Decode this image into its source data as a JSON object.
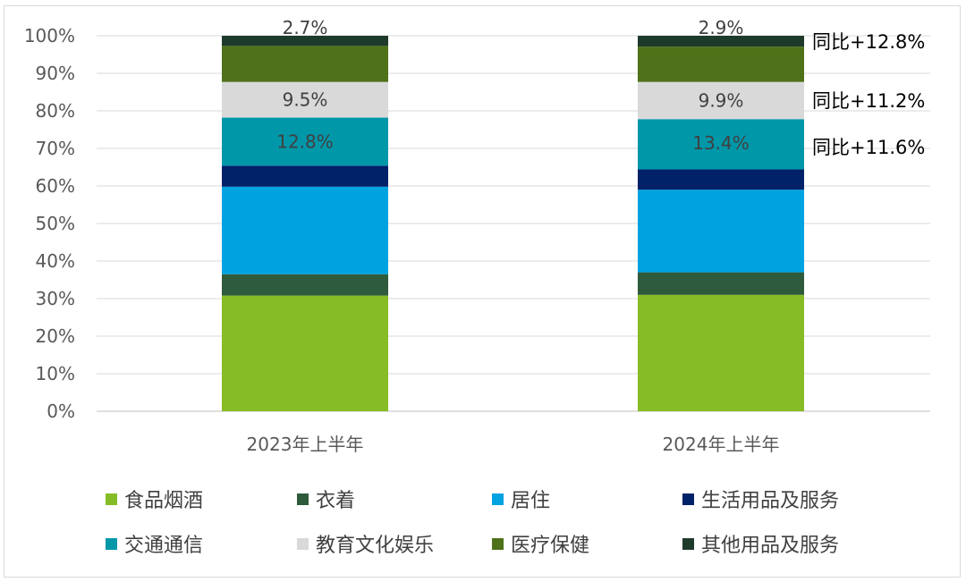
{
  "chart_data": {
    "type": "bar",
    "stacked": true,
    "categories": [
      "2023年上半年",
      "2024年上半年"
    ],
    "y_ticks": [
      "0%",
      "10%",
      "20%",
      "30%",
      "40%",
      "50%",
      "60%",
      "70%",
      "80%",
      "90%",
      "100%"
    ],
    "ylim": [
      0,
      100
    ],
    "grid": true,
    "legend_position": "bottom",
    "series": [
      {
        "name": "食品烟酒",
        "color": "#86bc25",
        "values": [
          30.8,
          31.0
        ]
      },
      {
        "name": "衣着",
        "color": "#2e5b3b",
        "values": [
          5.7,
          6.0
        ]
      },
      {
        "name": "居住",
        "color": "#00a3e0",
        "values": [
          23.3,
          22.0
        ]
      },
      {
        "name": "生活用品及服务",
        "color": "#012169",
        "values": [
          5.6,
          5.4
        ]
      },
      {
        "name": "交通通信",
        "color": "#0097a9",
        "values": [
          12.8,
          13.4
        ]
      },
      {
        "name": "教育文化娱乐",
        "color": "#d9d9d9",
        "values": [
          9.5,
          9.9
        ]
      },
      {
        "name": "医疗保健",
        "color": "#4f7119",
        "values": [
          9.6,
          9.4
        ]
      },
      {
        "name": "其他用品及服务",
        "color": "#1e3a2b",
        "values": [
          2.7,
          2.9
        ]
      }
    ],
    "data_labels": [
      {
        "series": "交通通信",
        "values": [
          "12.8%",
          "13.4%"
        ]
      },
      {
        "series": "教育文化娱乐",
        "values": [
          "9.5%",
          "9.9%"
        ]
      },
      {
        "series": "其他用品及服务",
        "values": [
          "2.7%",
          "2.9%"
        ]
      }
    ],
    "annotations": [
      {
        "series": "其他用品及服务",
        "text": "同比+12.8%"
      },
      {
        "series": "教育文化娱乐",
        "text": "同比+11.2%"
      },
      {
        "series": "交通通信",
        "text": "同比+11.6%"
      }
    ]
  }
}
